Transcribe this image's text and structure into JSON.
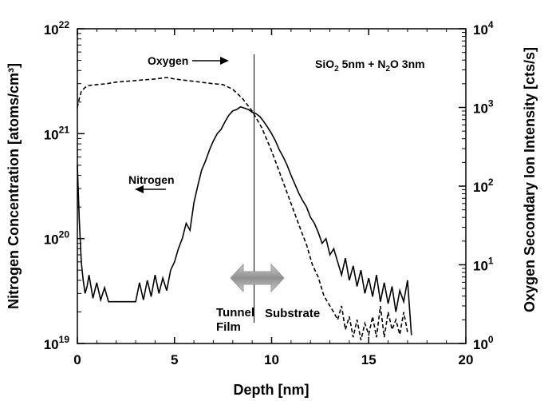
{
  "chart_data": {
    "type": "line",
    "title": "",
    "xlabel": "Depth  [nm]",
    "ylabel_left": "Nitrogen Concentration  [atoms/cm³]",
    "ylabel_right": "Oxygen Secondary Ion Intensity  [cts/s]",
    "xlim": [
      0,
      20
    ],
    "ylim_left": [
      1e+19,
      1e+22
    ],
    "ylim_right": [
      1,
      10000
    ],
    "y_scale": "log",
    "grid": false,
    "x_ticks": [
      "0",
      "5",
      "10",
      "15",
      "20"
    ],
    "y_left_ticks": [
      {
        "base": "10",
        "exp": "19"
      },
      {
        "base": "10",
        "exp": "20"
      },
      {
        "base": "10",
        "exp": "21"
      },
      {
        "base": "10",
        "exp": "22"
      }
    ],
    "y_right_ticks": [
      {
        "base": "10",
        "exp": "0"
      },
      {
        "base": "10",
        "exp": "1"
      },
      {
        "base": "10",
        "exp": "2"
      },
      {
        "base": "10",
        "exp": "3"
      },
      {
        "base": "10",
        "exp": "4"
      }
    ],
    "annotations": {
      "sample_label": {
        "pre": "SiO",
        "sub1": "2",
        "mid": " 5nm + N",
        "sub2": "2",
        "post": "O 3nm"
      },
      "oxygen_label": "Oxygen",
      "nitrogen_label": "Nitrogen",
      "tunnel_label_1": "Tunnel",
      "tunnel_label_2": "Film",
      "substrate_label": "Substrate"
    },
    "interface_depth": 9.1,
    "series": [
      {
        "axis": "left",
        "style": "solid",
        "x": [
          0,
          0.1,
          0.2,
          0.3,
          0.4,
          0.5,
          0.6,
          0.8,
          1.0,
          1.2,
          1.4,
          1.6,
          1.8,
          2.0,
          2.5,
          3.0,
          3.2,
          3.4,
          3.6,
          3.8,
          4.0,
          4.2,
          4.4,
          4.6,
          4.8,
          5.0,
          5.2,
          5.4,
          5.6,
          5.8,
          6.0,
          6.2,
          6.4,
          6.6,
          6.8,
          7.0,
          7.2,
          7.4,
          7.6,
          7.8,
          8.0,
          8.2,
          8.4,
          8.6,
          8.8,
          9.0,
          9.2,
          9.4,
          9.6,
          9.8,
          10.0,
          10.2,
          10.4,
          10.6,
          10.8,
          11.0,
          11.2,
          11.4,
          11.6,
          11.8,
          12.0,
          12.2,
          12.4,
          12.6,
          12.8,
          13.0,
          13.2,
          13.4,
          13.6,
          13.8,
          14.0,
          14.2,
          14.4,
          14.6,
          14.8,
          15.0,
          15.2,
          15.4,
          15.6,
          15.8,
          16.0,
          16.2,
          16.4,
          16.6,
          16.8,
          17.0,
          17.2
        ],
        "y": [
          5e+20,
          1.5e+20,
          6e+19,
          4e+19,
          3e+19,
          3.5e+19,
          4.5e+19,
          2.7e+19,
          3.8e+19,
          2.6e+19,
          3.4e+19,
          2.5e+19,
          2.5e+19,
          2.5e+19,
          2.5e+19,
          2.5e+19,
          3.8e+19,
          2.6e+19,
          4e+19,
          2.8e+19,
          4.5e+19,
          3e+19,
          4.2e+19,
          3.2e+19,
          5e+19,
          6e+19,
          8e+19,
          1e+20,
          1.4e+20,
          1.2e+20,
          2.2e+20,
          3.2e+20,
          4.5e+20,
          5.5e+20,
          7e+20,
          8.5e+20,
          1e+21,
          1.1e+21,
          1.3e+21,
          1.5e+21,
          1.65e+21,
          1.7e+21,
          1.8e+21,
          1.75e+21,
          1.7e+21,
          1.6e+21,
          1.55e+21,
          1.45e+21,
          1.3e+21,
          1.15e+21,
          1e+21,
          8.5e+20,
          7e+20,
          6e+20,
          5e+20,
          4e+20,
          3.3e+20,
          2.7e+20,
          2.3e+20,
          2e+20,
          1.6e+20,
          1.4e+20,
          1.15e+20,
          9e+19,
          1e+20,
          7e+19,
          8e+19,
          6e+19,
          4.5e+19,
          6.5e+19,
          4e+19,
          5.5e+19,
          3.5e+19,
          5e+19,
          3e+19,
          4.2e+19,
          2.8e+19,
          4.5e+19,
          2.5e+19,
          3.8e+19,
          2.4e+19,
          3.5e+19,
          2e+19,
          3.2e+19,
          2.5e+19,
          4e+19,
          1.2e+19
        ]
      },
      {
        "axis": "right",
        "style": "dashed",
        "x": [
          0,
          0.1,
          0.2,
          0.4,
          0.6,
          1.0,
          1.5,
          2.0,
          3.0,
          4.0,
          4.6,
          5.0,
          6.0,
          7.0,
          7.5,
          8.0,
          8.5,
          9.0,
          9.5,
          10.0,
          10.5,
          11.0,
          11.5,
          11.8,
          12.1,
          12.4,
          12.7,
          13.0,
          13.2,
          13.4,
          13.6,
          13.8,
          14.0,
          14.2,
          14.4,
          14.6,
          14.8,
          15.0,
          15.2,
          15.4,
          15.6,
          15.8,
          16.0,
          16.2,
          16.4,
          16.6,
          16.8,
          17.0
        ],
        "y": [
          1000,
          1300,
          1600,
          1800,
          1900,
          1950,
          2000,
          2100,
          2200,
          2300,
          2400,
          2300,
          2150,
          2000,
          1950,
          1700,
          1300,
          900,
          550,
          280,
          130,
          60,
          28,
          18,
          10,
          7,
          4,
          3,
          2.5,
          2,
          3,
          1.5,
          2.2,
          1.2,
          2,
          1.1,
          1.8,
          1.3,
          2.2,
          1.2,
          3,
          1.2,
          2.5,
          1.5,
          2,
          1.3,
          2.5,
          1.4
        ]
      }
    ]
  }
}
